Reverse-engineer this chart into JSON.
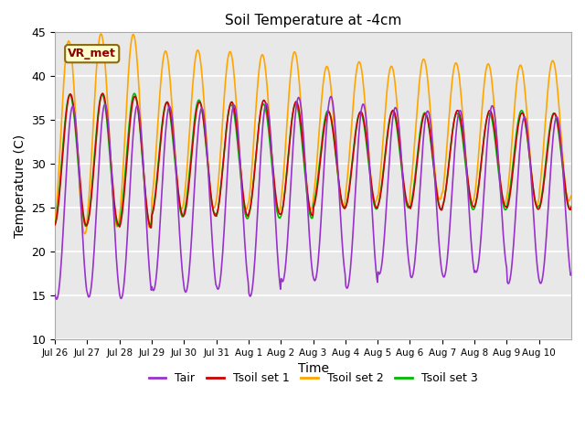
{
  "title": "Soil Temperature at -4cm",
  "xlabel": "Time",
  "ylabel": "Temperature (C)",
  "ylim": [
    10,
    45
  ],
  "background_color": "#e8e8e8",
  "grid_color": "#cccccc",
  "colors": {
    "Tair": "#9932cc",
    "Tsoil1": "#cc0000",
    "Tsoil2": "#ffa500",
    "Tsoil3": "#00bb00"
  },
  "legend_labels": [
    "Tair",
    "Tsoil set 1",
    "Tsoil set 2",
    "Tsoil set 3"
  ],
  "station_label": "VR_met",
  "xtick_labels": [
    "Jul 26",
    "Jul 27",
    "Jul 28",
    "Jul 29",
    "Jul 30",
    "Jul 31",
    "Aug 1",
    "Aug 2",
    "Aug 3",
    "Aug 4",
    "Aug 5",
    "Aug 6",
    "Aug 7",
    "Aug 8",
    "Aug 9",
    "Aug 10"
  ],
  "font_size": 10,
  "title_fontsize": 11,
  "yticks": [
    10,
    15,
    20,
    25,
    30,
    35,
    40,
    45
  ]
}
